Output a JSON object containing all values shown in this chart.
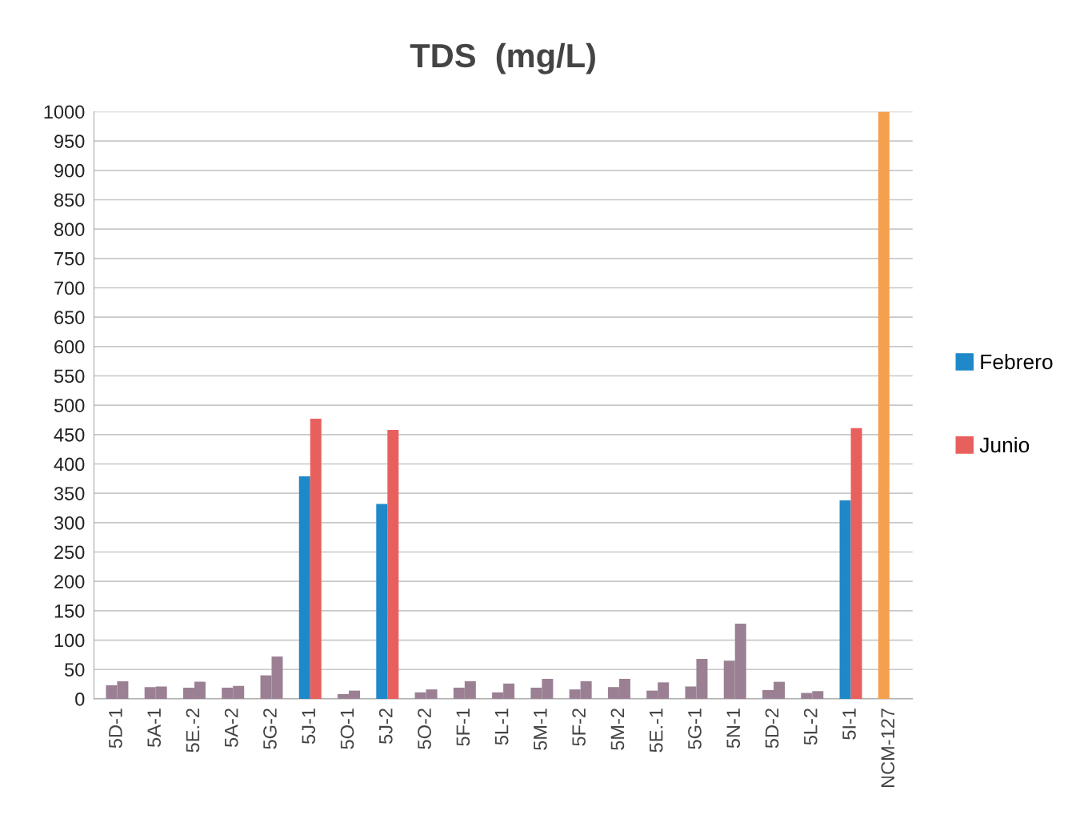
{
  "chart_data": {
    "type": "bar",
    "title": "TDS  (mg/L)",
    "categories": [
      "5D-1",
      "5A-1",
      "5E.-2",
      "5A-2",
      "5G-2",
      "5J-1",
      "5O-1",
      "5J-2",
      "5O-2",
      "5F-1",
      "5L-1",
      "5M-1",
      "5F-2",
      "5M-2",
      "5E.-1",
      "5G-1",
      "5N-1",
      "5D-2",
      "5L-2",
      "5I-1",
      "NCM-127"
    ],
    "series": [
      {
        "name": "Febrero",
        "color": "#1f88c8",
        "values": [
          23,
          20,
          19,
          19,
          40,
          379,
          8,
          332,
          11,
          19,
          11,
          19,
          16,
          20,
          14,
          21,
          65,
          15,
          10,
          338,
          1000
        ],
        "colors": [
          "#9b8093",
          "#9b8093",
          "#9b8093",
          "#9b8093",
          "#9b8093",
          "#1f88c8",
          "#9b8093",
          "#1f88c8",
          "#9b8093",
          "#9b8093",
          "#9b8093",
          "#9b8093",
          "#9b8093",
          "#9b8093",
          "#9b8093",
          "#9b8093",
          "#9b8093",
          "#9b8093",
          "#9b8093",
          "#1f88c8",
          "#f5a04e"
        ]
      },
      {
        "name": "Junio",
        "color": "#e8605e",
        "values": [
          30,
          21,
          29,
          22,
          72,
          477,
          14,
          458,
          16,
          30,
          26,
          34,
          30,
          34,
          28,
          68,
          128,
          29,
          13,
          461,
          null
        ],
        "colors": [
          "#9b8093",
          "#9b8093",
          "#9b8093",
          "#9b8093",
          "#9b8093",
          "#e8605e",
          "#9b8093",
          "#e8605e",
          "#9b8093",
          "#9b8093",
          "#9b8093",
          "#9b8093",
          "#9b8093",
          "#9b8093",
          "#9b8093",
          "#9b8093",
          "#9b8093",
          "#9b8093",
          "#9b8093",
          "#e8605e",
          null
        ]
      }
    ],
    "ylim": [
      0,
      1000
    ],
    "yticks": [
      0,
      50,
      100,
      150,
      200,
      250,
      300,
      350,
      400,
      450,
      500,
      550,
      600,
      650,
      700,
      750,
      800,
      850,
      900,
      950,
      1000
    ],
    "grid": "y",
    "legend": "right"
  }
}
